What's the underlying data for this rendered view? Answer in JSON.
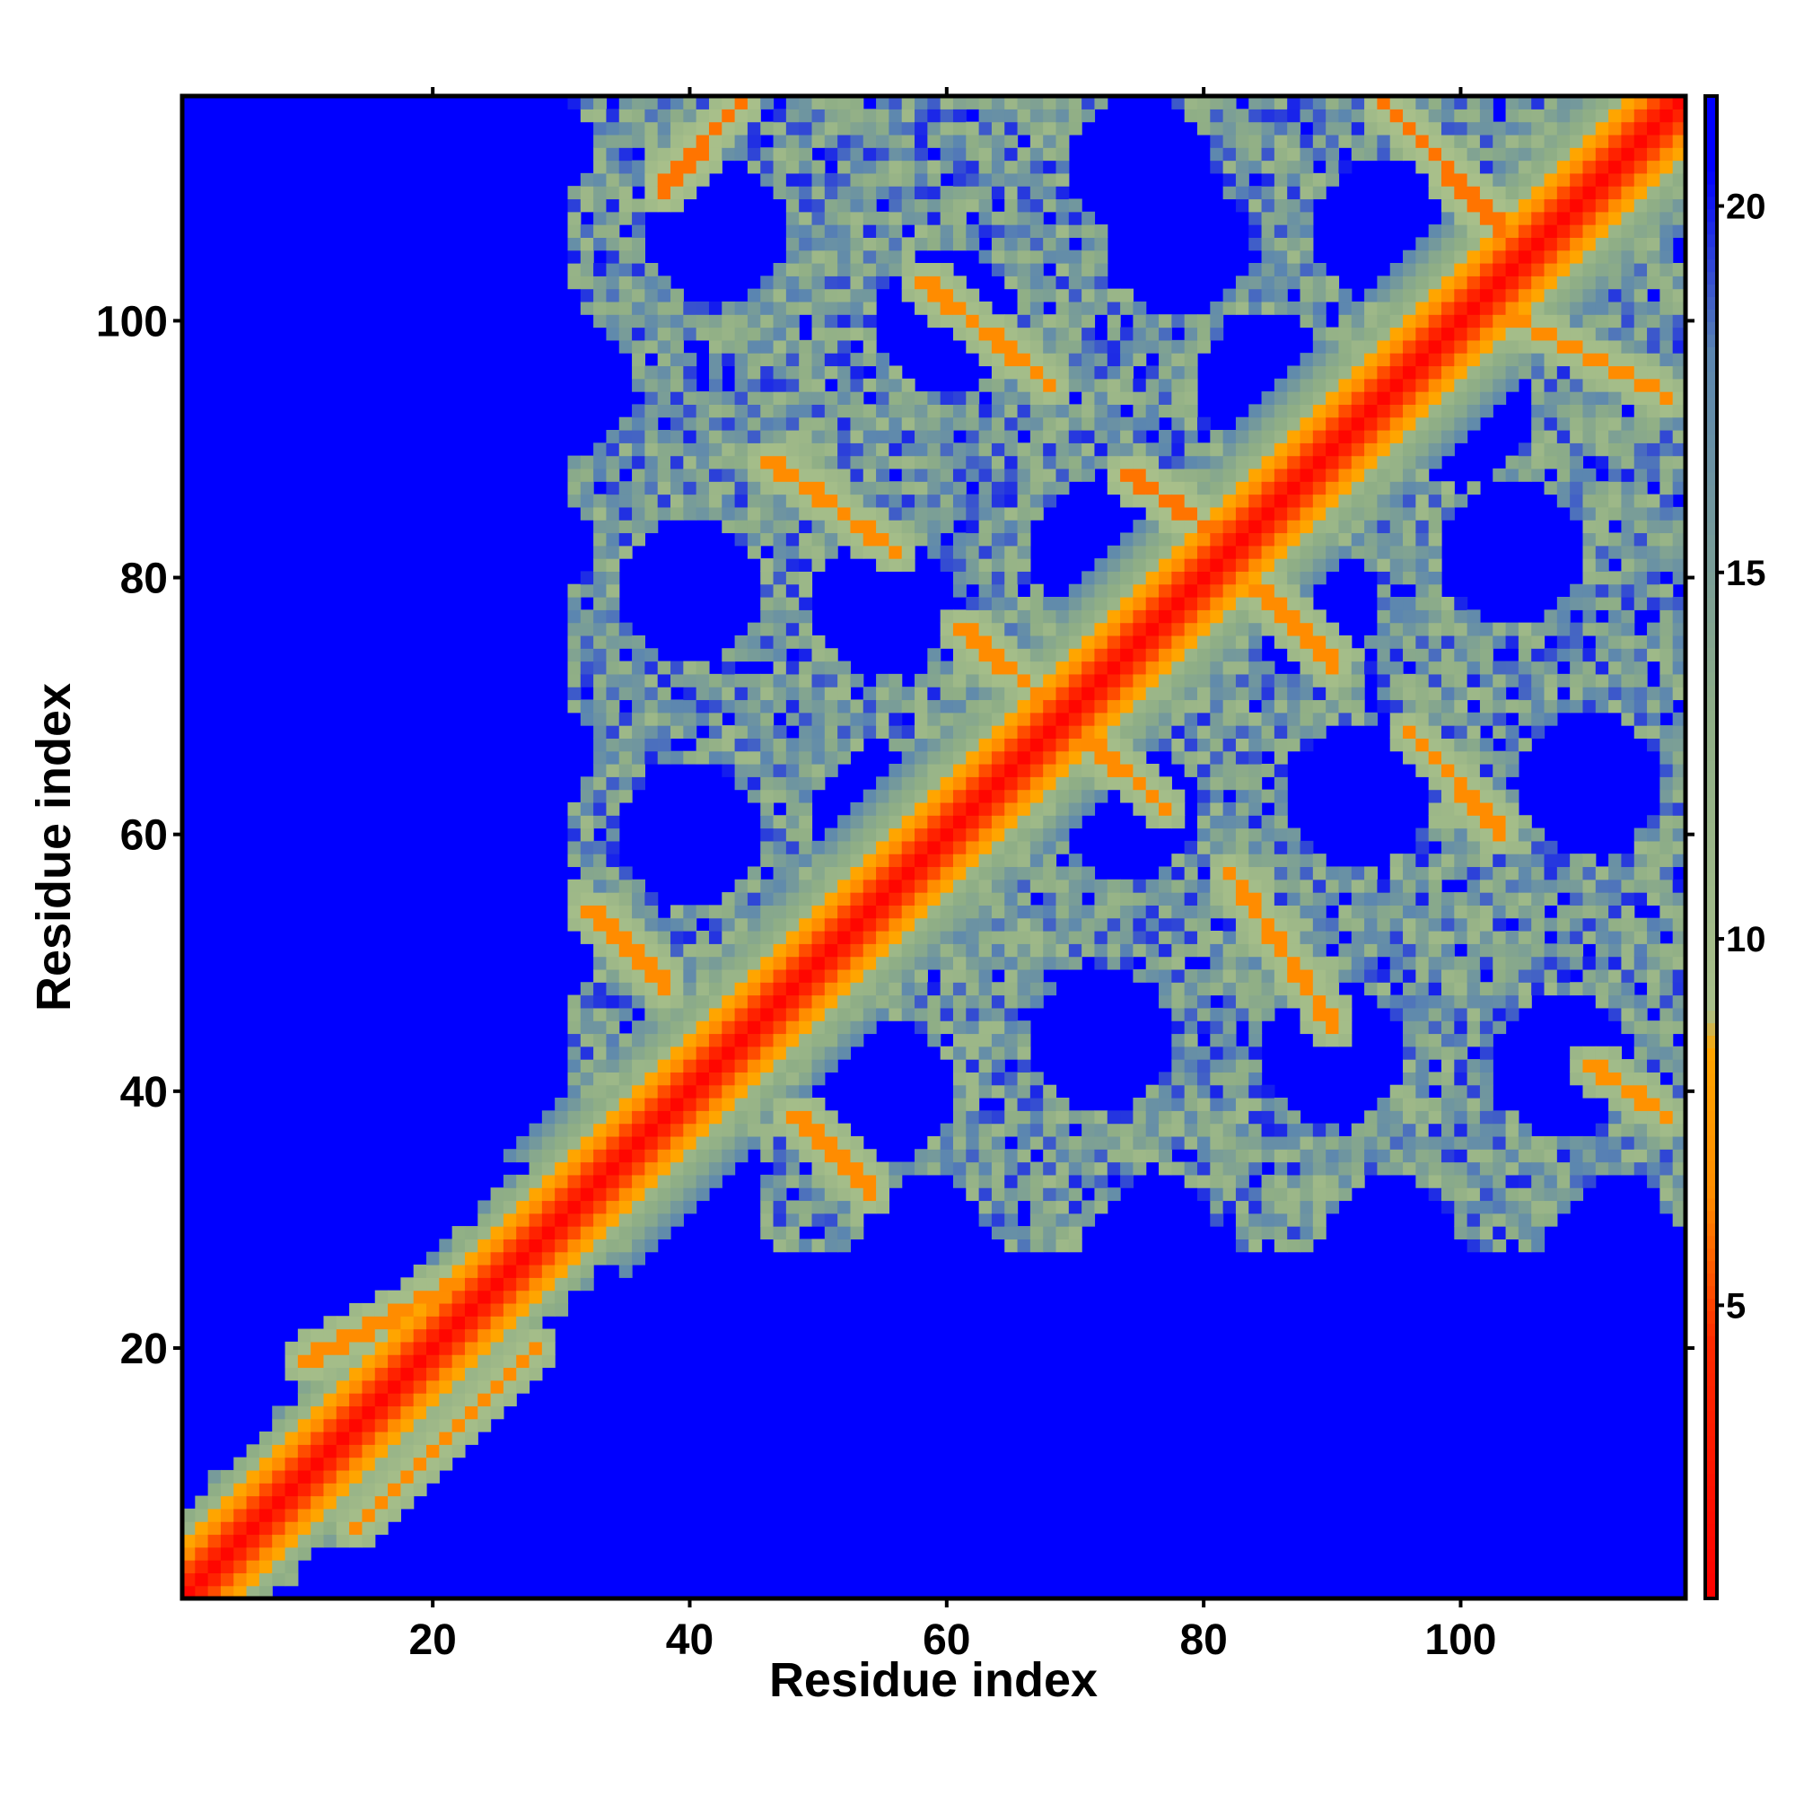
{
  "chart_data": {
    "type": "heatmap",
    "title": "",
    "xlabel": "Residue index",
    "ylabel": "Residue index",
    "n": 117,
    "xlim": [
      1,
      117
    ],
    "ylim": [
      1,
      117
    ],
    "x_ticks": [
      20,
      40,
      60,
      80,
      100
    ],
    "y_ticks": [
      20,
      40,
      60,
      80,
      100
    ],
    "x_tick_labels": [
      "20",
      "40",
      "60",
      "80",
      "100"
    ],
    "y_tick_labels": [
      "20",
      "40",
      "60",
      "80",
      "100"
    ],
    "colorbar": {
      "range": [
        1,
        21.5
      ],
      "ticks": [
        5,
        10,
        15,
        20
      ],
      "tick_labels": [
        "5",
        "10",
        "15",
        "20"
      ],
      "placement": "right",
      "stops": [
        {
          "value": 1,
          "color": "#ff0000"
        },
        {
          "value": 4.5,
          "color": "#ff2a00"
        },
        {
          "value": 6.5,
          "color": "#ff8c00"
        },
        {
          "value": 8.5,
          "color": "#ffa500"
        },
        {
          "value": 9,
          "color": "#a9c08a"
        },
        {
          "value": 13,
          "color": "#8fae86"
        },
        {
          "value": 18,
          "color": "#5b86b0"
        },
        {
          "value": 20.5,
          "color": "#0000ff"
        },
        {
          "value": 21.5,
          "color": "#0000ff"
        }
      ]
    },
    "cutoff": 20,
    "background_color": "#0000ff",
    "clusters": [
      {
        "x": [
          31,
          117
        ],
        "y": [
          28,
          117
        ]
      },
      {
        "x": [
          1,
          36
        ],
        "y": [
          1,
          36
        ]
      }
    ],
    "contact_lines": [
      {
        "from": [
          44,
          117
        ],
        "to": [
          38,
          110
        ],
        "distance": 6
      },
      {
        "from": [
          58,
          103
        ],
        "to": [
          68,
          95
        ],
        "distance": 6.5
      },
      {
        "from": [
          46,
          89
        ],
        "to": [
          56,
          82
        ],
        "distance": 6.5
      },
      {
        "from": [
          74,
          88
        ],
        "to": [
          83,
          82
        ],
        "distance": 6
      },
      {
        "from": [
          61,
          76
        ],
        "to": [
          68,
          70
        ],
        "distance": 6.5
      },
      {
        "from": [
          70,
          68
        ],
        "to": [
          77,
          62
        ],
        "distance": 6.5
      },
      {
        "from": [
          84,
          79
        ],
        "to": [
          90,
          73
        ],
        "distance": 6.5
      },
      {
        "from": [
          96,
          68
        ],
        "to": [
          103,
          60
        ],
        "distance": 6.5
      },
      {
        "from": [
          82,
          57
        ],
        "to": [
          90,
          45
        ],
        "distance": 6.5
      },
      {
        "from": [
          32,
          54
        ],
        "to": [
          38,
          48
        ],
        "distance": 6.5
      },
      {
        "from": [
          48,
          38
        ],
        "to": [
          54,
          32
        ],
        "distance": 6.5
      },
      {
        "from": [
          94,
          117
        ],
        "to": [
          103,
          107
        ],
        "distance": 6
      },
      {
        "from": [
          104,
          100
        ],
        "to": [
          116,
          94
        ],
        "distance": 6.5
      },
      {
        "from": [
          110,
          42
        ],
        "to": [
          116,
          38
        ],
        "distance": 7
      },
      {
        "from": [
          10,
          19
        ],
        "to": [
          27,
          28
        ],
        "distance": 6.5
      },
      {
        "from": [
          14,
          6
        ],
        "to": [
          28,
          20
        ],
        "distance": 6.5
      }
    ]
  }
}
